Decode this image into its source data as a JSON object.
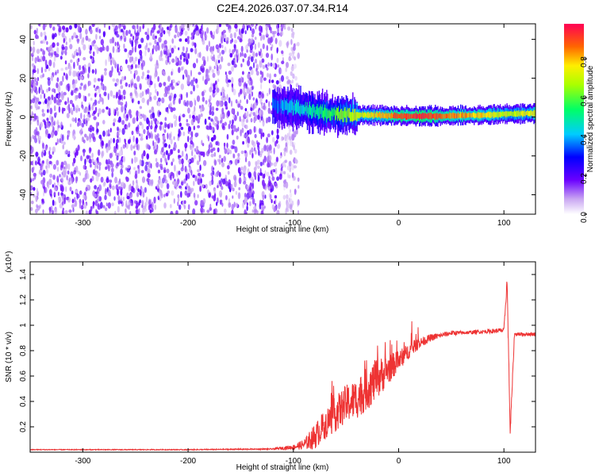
{
  "title": "C2E4.2026.037.07.34.R14",
  "chart_data": [
    {
      "type": "heatmap",
      "xlabel": "Height of straight line (km)",
      "ylabel": "Frequency (Hz)",
      "xlim": [
        -350,
        130
      ],
      "ylim": [
        -50,
        48
      ],
      "xticks": [
        -300,
        -200,
        -100,
        0,
        100
      ],
      "yticks": [
        -40,
        -20,
        0,
        20,
        40
      ],
      "colorbar": {
        "label": "Normalized spectral amplitude",
        "range": [
          0.0,
          0.98
        ],
        "ticks": [
          0.0,
          0.2,
          0.4,
          0.6,
          0.8
        ],
        "colormap": "rainbow"
      },
      "signal_ridge": {
        "x": [
          -120,
          -100,
          -80,
          -60,
          -40,
          -20,
          0,
          20,
          40,
          60,
          80,
          100,
          130
        ],
        "center_freq": [
          6,
          5,
          3,
          1.5,
          1,
          1,
          0.5,
          0.5,
          0.5,
          0.8,
          1,
          1.5,
          2
        ],
        "amplitude": [
          0.35,
          0.45,
          0.5,
          0.6,
          0.7,
          0.8,
          0.9,
          0.95,
          0.9,
          0.85,
          0.8,
          0.7,
          0.75
        ]
      },
      "noise_region_x": [
        -350,
        -95
      ],
      "grid": false
    },
    {
      "type": "line",
      "xlabel": "Height of straight line (km)",
      "ylabel": "SNR (10 * v/v)",
      "scale_label": "(x10⁴)",
      "xlim": [
        -350,
        130
      ],
      "ylim": [
        0,
        1.5
      ],
      "xticks": [
        -300,
        -200,
        -100,
        0,
        100
      ],
      "yticks": [
        0.2,
        0.4,
        0.6,
        0.8,
        1.0,
        1.2,
        1.4
      ],
      "color": "#ee3333",
      "series": [
        {
          "x": [
            -350,
            -200,
            -120,
            -100,
            -90,
            -80,
            -70,
            -60,
            -50,
            -40,
            -30,
            -20,
            -10,
            0,
            10,
            20,
            30,
            40,
            50,
            60,
            80,
            100,
            103,
            106,
            110,
            130
          ],
          "values": [
            0.02,
            0.02,
            0.025,
            0.04,
            0.06,
            0.12,
            0.22,
            0.3,
            0.38,
            0.42,
            0.5,
            0.58,
            0.65,
            0.72,
            0.8,
            0.86,
            0.9,
            0.92,
            0.94,
            0.94,
            0.95,
            0.96,
            1.35,
            0.15,
            0.93,
            0.93
          ],
          "noise": [
            0.003,
            0.003,
            0.005,
            0.02,
            0.04,
            0.1,
            0.12,
            0.14,
            0.15,
            0.16,
            0.17,
            0.16,
            0.12,
            0.08,
            0.06,
            0.04,
            0.03,
            0.02,
            0.02,
            0.015,
            0.015,
            0.02,
            0.05,
            0.05,
            0.015,
            0.015
          ]
        }
      ],
      "grid": false
    }
  ]
}
